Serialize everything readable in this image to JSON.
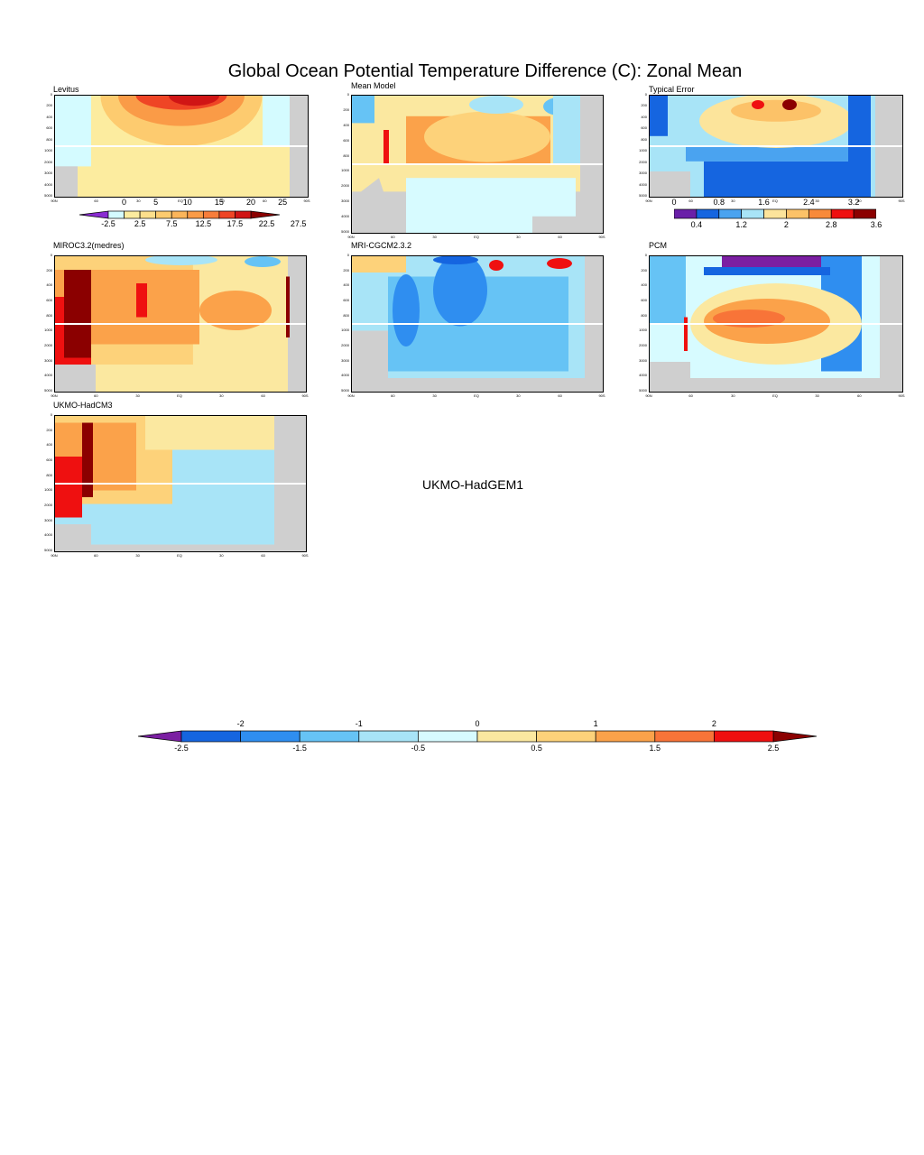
{
  "title": "Global Ocean Potential Temperature Difference (C): Zonal Mean",
  "colors": {
    "diff": [
      "#7b1fa2",
      "#1565e0",
      "#2f8ef0",
      "#66c3f5",
      "#a8e4f7",
      "#d7fbff",
      "#fbe8a0",
      "#fdd27a",
      "#fba24a",
      "#f87438",
      "#ef1010",
      "#8b0000"
    ],
    "levitus": [
      "#8a2bd2",
      "#d4fbff",
      "#fcec9f",
      "#fddf8c",
      "#fdcb6f",
      "#fbb55a",
      "#fa9b47",
      "#f77d3a",
      "#ef4525",
      "#d01515",
      "#8b0000"
    ],
    "error": [
      "#6a1fa8",
      "#1565e0",
      "#4aa3f0",
      "#a8e4f7",
      "#fce49b",
      "#fcc268",
      "#f88a3a",
      "#ef1010",
      "#8b0000"
    ],
    "land": "#cfcfcf"
  },
  "axes": {
    "xticks": [
      "90N",
      "60",
      "30",
      "EQ",
      "30",
      "60",
      "90S"
    ],
    "yticks": [
      "0",
      "200",
      "400",
      "600",
      "800",
      "1000",
      "2000",
      "3000",
      "4000",
      "5000"
    ]
  },
  "panels": [
    {
      "id": "levitus",
      "label": "Levitus"
    },
    {
      "id": "mean",
      "label": "Mean Model"
    },
    {
      "id": "error",
      "label": "Typical Error"
    },
    {
      "id": "miroc",
      "label": "MIROC3.2(medres)"
    },
    {
      "id": "mri",
      "label": "MRI-CGCM2.3.2"
    },
    {
      "id": "pcm",
      "label": "PCM"
    },
    {
      "id": "hadcm3",
      "label": "UKMO-HadCM3"
    }
  ],
  "empty_panel": "UKMO-HadGEM1",
  "levitus_bar": {
    "top": [
      "0",
      "5",
      "10",
      "15",
      "20",
      "25"
    ],
    "bottom": [
      "-2.5",
      "2.5",
      "7.5",
      "12.5",
      "17.5",
      "22.5",
      "27.5"
    ]
  },
  "error_bar": {
    "top": [
      "0",
      "0.8",
      "1.6",
      "2.4",
      "3.2"
    ],
    "bottom": [
      "0.4",
      "1.2",
      "2",
      "2.8",
      "3.6"
    ]
  },
  "main_bar": {
    "top": [
      "-2",
      "-1",
      "0",
      "1",
      "2"
    ],
    "bottom": [
      "-2.5",
      "-1.5",
      "-0.5",
      "0.5",
      "1.5",
      "2.5"
    ]
  },
  "chart_data": [
    {
      "type": "heatmap",
      "title": "Levitus",
      "x_range": [
        "90N",
        "90S"
      ],
      "y_range": [
        0,
        5000
      ],
      "ylabel": "",
      "xlabel": "",
      "values_note_range": [
        -2.5,
        27.5
      ]
    },
    {
      "type": "heatmap",
      "title": "Mean Model",
      "x_range": [
        "90N",
        "90S"
      ],
      "y_range": [
        0,
        5000
      ],
      "value_range": [
        -2.5,
        2.5
      ]
    },
    {
      "type": "heatmap",
      "title": "Typical Error",
      "x_range": [
        "90N",
        "90S"
      ],
      "y_range": [
        0,
        5000
      ],
      "value_range": [
        0,
        3.6
      ]
    },
    {
      "type": "heatmap",
      "title": "MIROC3.2(medres)",
      "x_range": [
        "90N",
        "90S"
      ],
      "y_range": [
        0,
        5000
      ],
      "value_range": [
        -2.5,
        2.5
      ]
    },
    {
      "type": "heatmap",
      "title": "MRI-CGCM2.3.2",
      "x_range": [
        "90N",
        "90S"
      ],
      "y_range": [
        0,
        5000
      ],
      "value_range": [
        -2.5,
        2.5
      ]
    },
    {
      "type": "heatmap",
      "title": "PCM",
      "x_range": [
        "90N",
        "90S"
      ],
      "y_range": [
        0,
        5000
      ],
      "value_range": [
        -2.5,
        2.5
      ]
    },
    {
      "type": "heatmap",
      "title": "UKMO-HadCM3",
      "x_range": [
        "90N",
        "90S"
      ],
      "y_range": [
        0,
        5000
      ],
      "value_range": [
        -2.5,
        2.5
      ]
    }
  ]
}
